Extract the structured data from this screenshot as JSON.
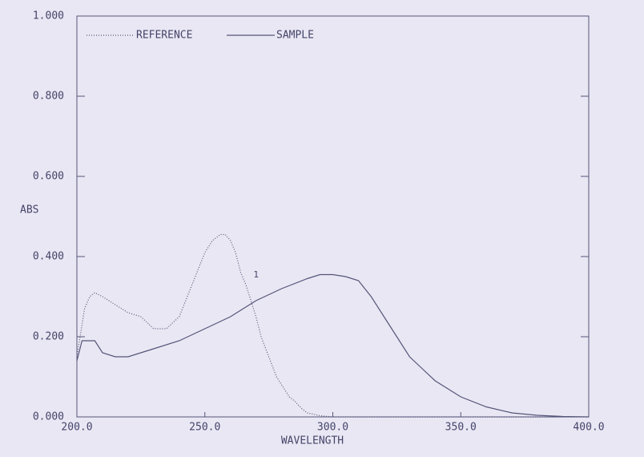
{
  "chart_data": {
    "type": "line",
    "x_label": "WAVELENGTH",
    "y_label": "ABS",
    "xlim": [
      200,
      400
    ],
    "ylim": [
      0,
      1
    ],
    "xticks": [
      {
        "value": 200,
        "label": "200.0"
      },
      {
        "value": 250,
        "label": "250.0"
      },
      {
        "value": 300,
        "label": "300.0"
      },
      {
        "value": 350,
        "label": "350.0"
      },
      {
        "value": 400,
        "label": "400.0"
      }
    ],
    "yticks": [
      {
        "value": 0,
        "label": "0.000"
      },
      {
        "value": 0.2,
        "label": "0.200"
      },
      {
        "value": 0.4,
        "label": "0.400"
      },
      {
        "value": 0.6,
        "label": "0.600"
      },
      {
        "value": 0.8,
        "label": "0.800"
      },
      {
        "value": 1,
        "label": "1.000"
      }
    ],
    "legend": "top-left",
    "series": [
      {
        "name": "REFERENCE",
        "color": "#55557a",
        "line_style": "dotted",
        "x": [
          200,
          203,
          205,
          207,
          210,
          215,
          220,
          225,
          230,
          235,
          240,
          245,
          250,
          253,
          256,
          258,
          260,
          262,
          264,
          266,
          268,
          270,
          272,
          275,
          278,
          280,
          283,
          285,
          288,
          290,
          295,
          300,
          320,
          350,
          380,
          400
        ],
        "values": [
          0.15,
          0.27,
          0.3,
          0.31,
          0.3,
          0.28,
          0.26,
          0.25,
          0.22,
          0.22,
          0.25,
          0.33,
          0.41,
          0.44,
          0.455,
          0.455,
          0.44,
          0.41,
          0.36,
          0.33,
          0.29,
          0.25,
          0.2,
          0.15,
          0.1,
          0.08,
          0.05,
          0.04,
          0.02,
          0.01,
          0.003,
          0.0,
          0.0,
          0.0,
          0.0,
          0.0
        ]
      },
      {
        "name": "SAMPLE",
        "color": "#55557a",
        "line_style": "solid",
        "x": [
          200,
          202,
          205,
          207,
          210,
          215,
          220,
          230,
          240,
          250,
          260,
          270,
          280,
          290,
          295,
          300,
          305,
          310,
          315,
          320,
          325,
          330,
          335,
          340,
          345,
          350,
          360,
          370,
          380,
          390,
          400
        ],
        "values": [
          0.14,
          0.19,
          0.19,
          0.19,
          0.16,
          0.15,
          0.15,
          0.17,
          0.19,
          0.22,
          0.25,
          0.29,
          0.32,
          0.345,
          0.355,
          0.355,
          0.35,
          0.34,
          0.3,
          0.25,
          0.2,
          0.15,
          0.12,
          0.09,
          0.07,
          0.05,
          0.025,
          0.01,
          0.004,
          0.001,
          0.0
        ]
      }
    ],
    "annotations": [
      {
        "text": "1",
        "x": 270,
        "y": 0.33
      }
    ]
  }
}
